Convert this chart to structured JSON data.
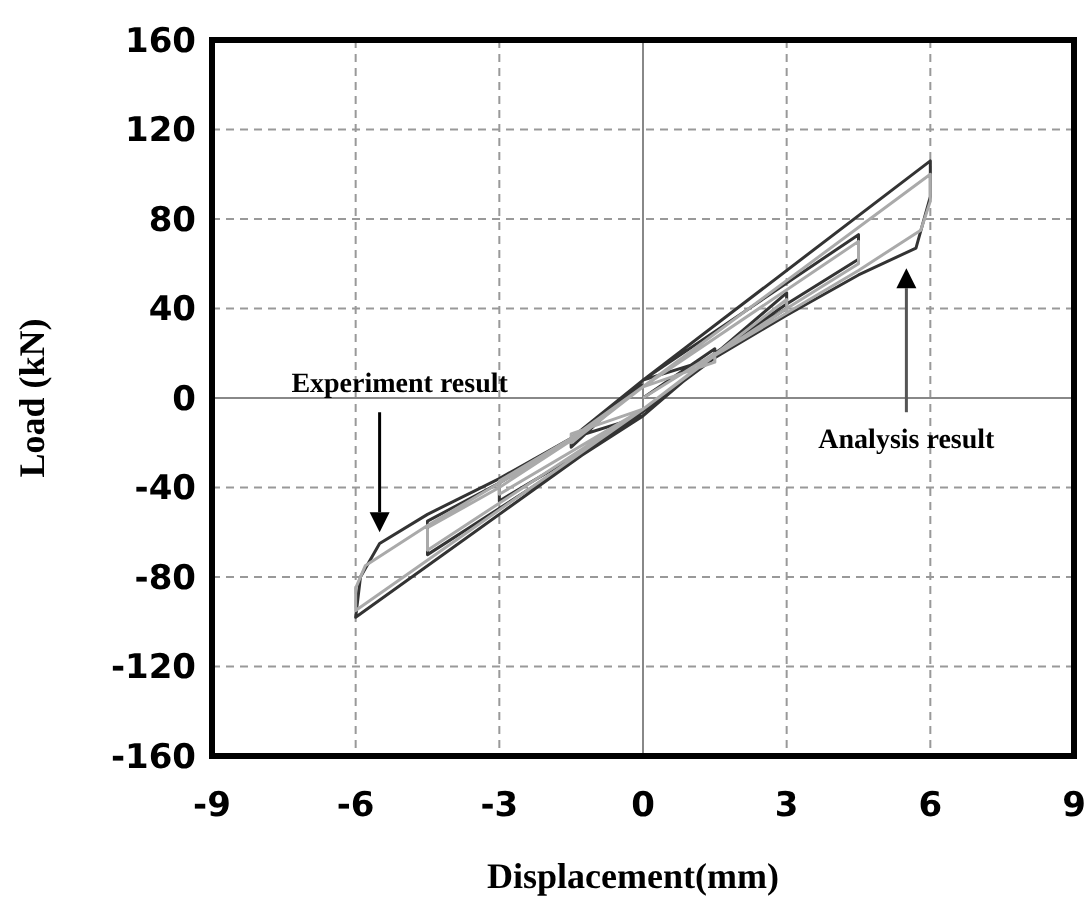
{
  "chart_data": {
    "type": "line",
    "xlabel": "Displacement(mm)",
    "ylabel": "Load (kN)",
    "xlim": [
      -9,
      9
    ],
    "xticks": [
      -9,
      -6,
      -3,
      0,
      3,
      6,
      9
    ],
    "ylim": [
      -160,
      160
    ],
    "yticks": [
      -160,
      -120,
      -80,
      -40,
      0,
      40,
      80,
      120,
      160
    ],
    "grid": true,
    "line_style": "solid",
    "marker": "none",
    "series": [
      {
        "color": "#333333",
        "x": [
          0,
          1.5,
          1.5,
          0,
          -1.5,
          -1.5,
          0,
          3,
          3,
          1.5,
          0,
          -3,
          -3,
          -1.5,
          0,
          4.5,
          4.5,
          3,
          1.5,
          0,
          -4.5,
          -4.5,
          -3,
          -1.5,
          0,
          6,
          6,
          5.7,
          4.5,
          3,
          1.5,
          0,
          -6,
          -5.9,
          -5.5,
          -4.5,
          -3,
          -1.5,
          0
        ],
        "values": [
          0,
          22,
          18,
          8,
          -22,
          -18,
          -8,
          47,
          40,
          20,
          -8,
          -46,
          -38,
          -18,
          8,
          73,
          62,
          42,
          20,
          -8,
          -70,
          -55,
          -38,
          -18,
          8,
          106,
          90,
          67,
          55,
          37,
          18,
          -6,
          -98,
          -80,
          -65,
          -52,
          -36,
          -18,
          6
        ]
      },
      {
        "color": "#aaaaaa",
        "x": [
          0,
          1.5,
          1.5,
          0,
          -1.5,
          -1.5,
          0,
          3,
          3,
          1.5,
          0,
          -3,
          -3,
          -1.5,
          0,
          4.5,
          4.5,
          3,
          1.5,
          0,
          -4.5,
          -4.5,
          -3,
          -1.5,
          0,
          6,
          6,
          5.8,
          4.5,
          3,
          1.5,
          0,
          -6,
          -6,
          -5.8,
          -4.5,
          -3,
          -1.5,
          0
        ],
        "values": [
          0,
          20,
          16,
          5,
          -20,
          -16,
          -5,
          44,
          38,
          19,
          -5,
          -43,
          -37,
          -18,
          5,
          70,
          60,
          40,
          19,
          -5,
          -68,
          -58,
          -40,
          -19,
          5,
          100,
          88,
          75,
          57,
          38,
          19,
          -5,
          -95,
          -85,
          -75,
          -57,
          -38,
          -19,
          5
        ]
      }
    ],
    "annotations": [
      "Experiment result",
      "Analysis result"
    ]
  }
}
